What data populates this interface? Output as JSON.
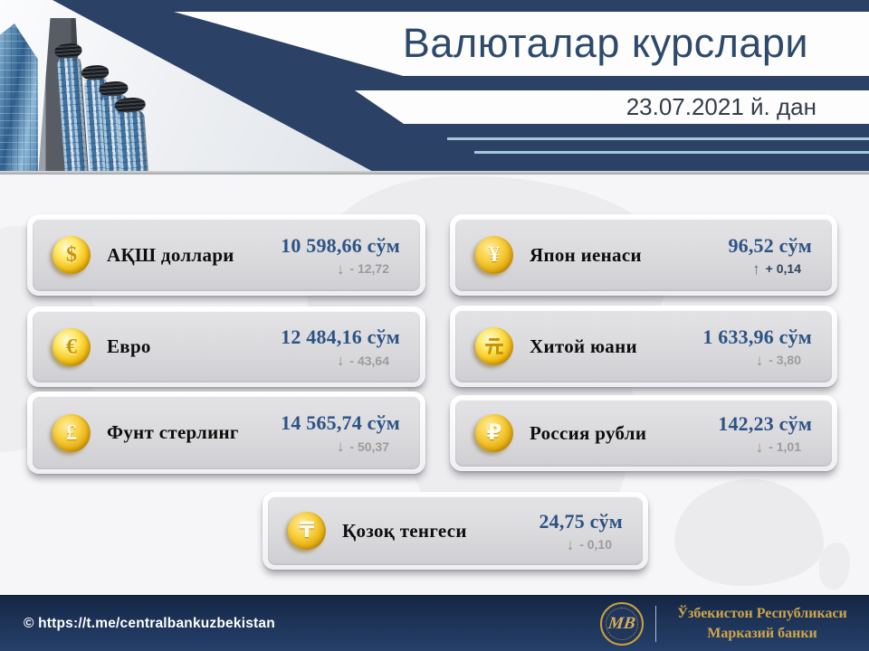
{
  "header": {
    "title": "Валюталар курслари",
    "date": "23.07.2021 й. дан"
  },
  "cards": [
    {
      "id": "usd",
      "name": "АҚШ доллари",
      "symbol": "$",
      "symbol_render": "text",
      "coin_style": "light",
      "value": "10 598,66 сўм",
      "direction": "down",
      "change": "- 12,72"
    },
    {
      "id": "jpy",
      "name": "Япон иенаси",
      "symbol": "¥",
      "symbol_render": "text",
      "coin_style": "gold",
      "value": "96,52 сўм",
      "direction": "up",
      "change": "+ 0,14"
    },
    {
      "id": "eur",
      "name": "Евро",
      "symbol": "€",
      "symbol_render": "text",
      "coin_style": "light",
      "value": "12 484,16 сўм",
      "direction": "down",
      "change": "- 43,64"
    },
    {
      "id": "cny",
      "name": "Хитой юани",
      "symbol": "元",
      "symbol_render": "css-yuan",
      "coin_style": "light",
      "value": "1 633,96 сўм",
      "direction": "down",
      "change": "- 3,80"
    },
    {
      "id": "gbp",
      "name": "Фунт стерлинг",
      "symbol": "£",
      "symbol_render": "text",
      "coin_style": "gold",
      "value": "14 565,74 сўм",
      "direction": "down",
      "change": "- 50,37"
    },
    {
      "id": "rub",
      "name": "Россия рубли",
      "symbol": "₽",
      "symbol_render": "text",
      "coin_style": "gold",
      "value": "142,23 сўм",
      "direction": "down",
      "change": "- 1,01"
    },
    {
      "id": "kzt",
      "name": "Қозоқ тенгеси",
      "symbol": "₸",
      "symbol_render": "text",
      "coin_style": "gold",
      "value": "24,75 сўм",
      "direction": "down",
      "change": "- 0,10"
    }
  ],
  "arrows": {
    "up": "↑",
    "down": "↓"
  },
  "footer": {
    "url": "© https://t.me/centralbankuzbekistan",
    "logo_monogram": "МВ",
    "bank_name_line1": "Ўзбекистон Республикаси",
    "bank_name_line2": "Марказий банки"
  },
  "colors": {
    "navy": "#2b4166",
    "footer_navy": "#1d3357",
    "value_blue": "#2d5384",
    "gold": "#cfa64b",
    "change_down_gray": "#9c9c9c",
    "change_up_navy": "#33425c",
    "line_light_blue": "#a6c5de"
  }
}
